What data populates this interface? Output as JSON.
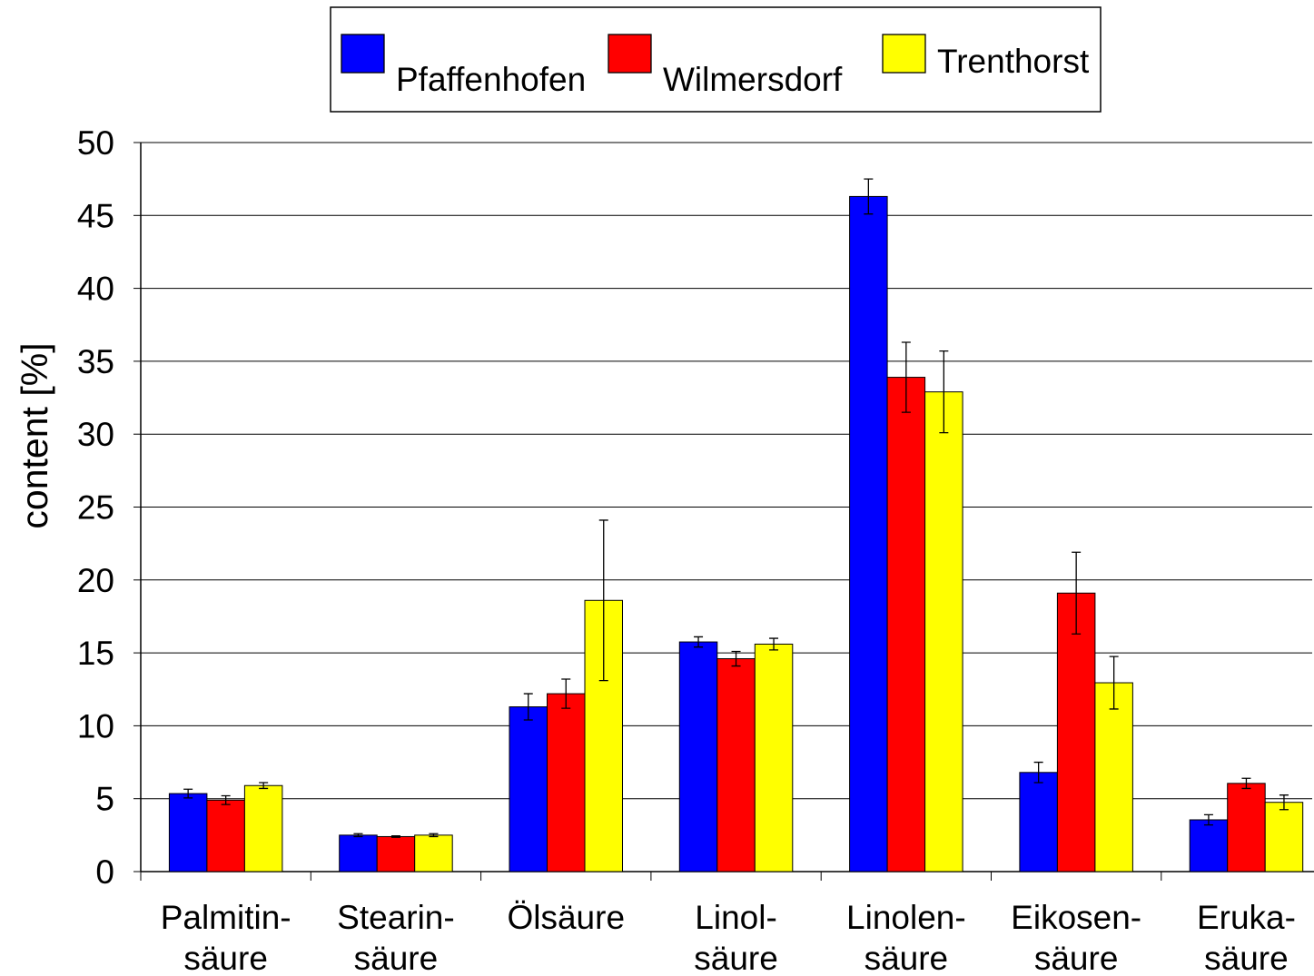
{
  "chart_data": {
    "type": "bar",
    "ylabel": "content [%]",
    "categories": [
      [
        "Palmitin-",
        "säure"
      ],
      [
        "Stearin-",
        "säure"
      ],
      [
        "Ölsäure"
      ],
      [
        "Linol-",
        "säure"
      ],
      [
        "Linolen-",
        "säure"
      ],
      [
        "Eikosen-",
        "säure"
      ],
      [
        "Eruka-",
        "säure"
      ]
    ],
    "series": [
      {
        "name": "Pfaffenhofen",
        "color": "#0000ff",
        "values": [
          5.35,
          2.5,
          11.3,
          15.75,
          46.3,
          6.8,
          3.55
        ],
        "errors": [
          0.3,
          0.1,
          0.9,
          0.35,
          1.2,
          0.7,
          0.35
        ]
      },
      {
        "name": "Wilmersdorf",
        "color": "#ff0000",
        "values": [
          4.9,
          2.4,
          12.2,
          14.6,
          33.9,
          19.1,
          6.05
        ],
        "errors": [
          0.3,
          0.05,
          1.0,
          0.5,
          2.4,
          2.8,
          0.35
        ]
      },
      {
        "name": "Trenthorst",
        "color": "#ffff00",
        "values": [
          5.9,
          2.5,
          18.6,
          15.6,
          32.9,
          12.95,
          4.75
        ],
        "errors": [
          0.2,
          0.1,
          5.5,
          0.4,
          2.8,
          1.8,
          0.5
        ]
      }
    ],
    "ylim": [
      0,
      50
    ],
    "yticks": [
      0,
      5,
      10,
      15,
      20,
      25,
      30,
      35,
      40,
      45,
      50
    ],
    "grid": true,
    "legend": "top"
  }
}
